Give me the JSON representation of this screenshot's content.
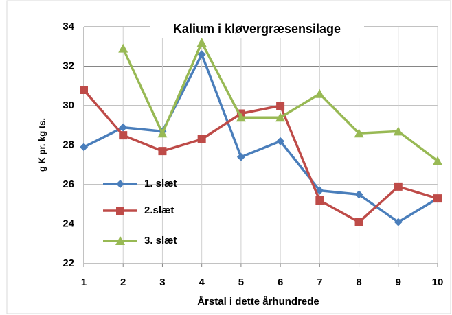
{
  "chart_data": {
    "type": "line",
    "title": "Kalium i kløvergræsensilage",
    "xlabel": "Årstal i dette århundrede",
    "ylabel": "g K pr. kg ts.",
    "x": [
      1,
      2,
      3,
      4,
      5,
      6,
      7,
      8,
      9,
      10
    ],
    "xlim": [
      1,
      10
    ],
    "xticks": [
      1,
      2,
      3,
      4,
      5,
      6,
      7,
      8,
      9,
      10
    ],
    "ylim": [
      22,
      34
    ],
    "yticks": [
      22,
      24,
      26,
      28,
      30,
      32,
      34
    ],
    "grid": true,
    "series": [
      {
        "name": "1. slæt",
        "color": "#4a7ebb",
        "marker": "diamond",
        "values": [
          27.9,
          28.9,
          28.7,
          32.6,
          27.4,
          28.2,
          25.7,
          25.5,
          24.1,
          25.3
        ]
      },
      {
        "name": "2.slæt",
        "color": "#be4b48",
        "marker": "square",
        "values": [
          30.8,
          28.5,
          27.7,
          28.3,
          29.6,
          30.0,
          25.2,
          24.1,
          25.9,
          25.3
        ]
      },
      {
        "name": "3. slæt",
        "color": "#98b954",
        "marker": "triangle",
        "values": [
          null,
          32.9,
          28.6,
          33.2,
          29.4,
          29.4,
          30.6,
          28.6,
          28.7,
          27.2
        ]
      }
    ]
  }
}
